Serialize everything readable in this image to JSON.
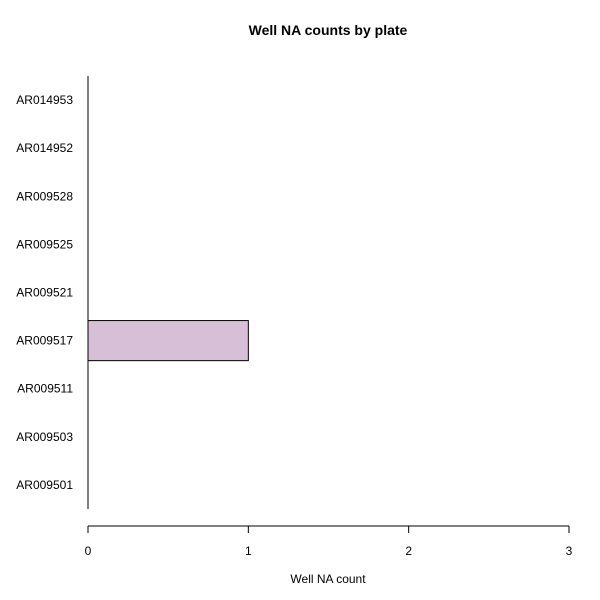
{
  "chart_data": {
    "type": "bar",
    "orientation": "horizontal",
    "title": "Well NA counts by plate",
    "xlabel": "Well NA count",
    "ylabel": "",
    "categories": [
      "AR009501",
      "AR009503",
      "AR009511",
      "AR009517",
      "AR009521",
      "AR009525",
      "AR009528",
      "AR014952",
      "AR014953"
    ],
    "values": [
      0,
      0,
      0,
      1,
      0,
      0,
      0,
      0,
      0
    ],
    "xlim": [
      0,
      3
    ],
    "x_ticks": [
      0,
      1,
      2,
      3
    ],
    "grid": false,
    "bar_color": "#d8bfd8",
    "bar_border_color": "#000000"
  }
}
